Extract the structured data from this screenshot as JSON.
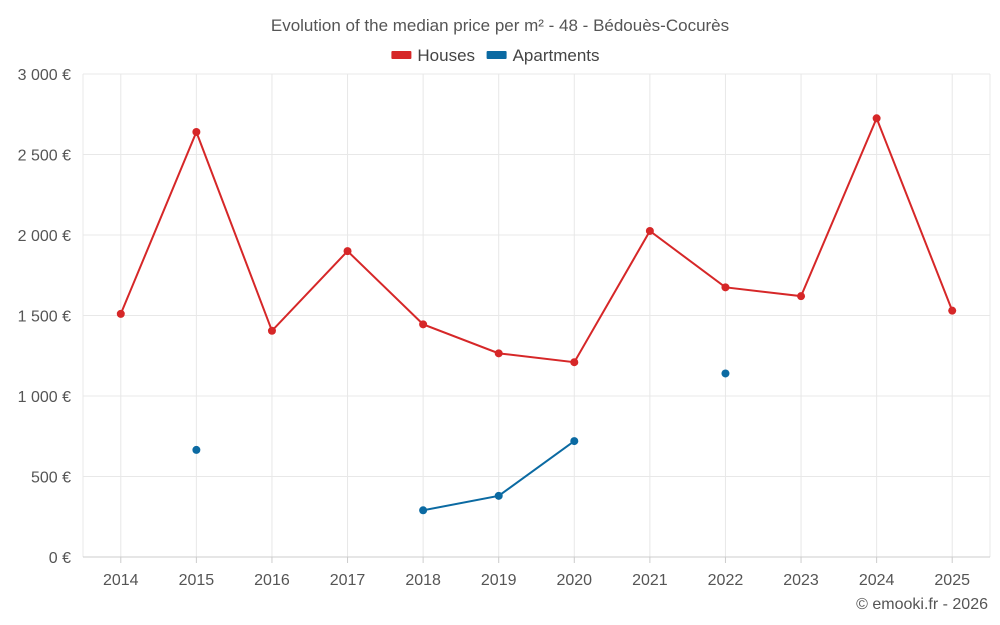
{
  "chart_data": {
    "type": "line",
    "title": "Evolution of the median price per m² - 48 - Bédouès-Cocurès",
    "categories": [
      "2014",
      "2015",
      "2016",
      "2017",
      "2018",
      "2019",
      "2020",
      "2021",
      "2022",
      "2023",
      "2024",
      "2025"
    ],
    "ylim": [
      0,
      3000
    ],
    "y_ticks": [
      0,
      500,
      1000,
      1500,
      2000,
      2500,
      3000
    ],
    "y_tick_labels": [
      "0 €",
      "500 €",
      "1 000 €",
      "1 500 €",
      "2 000 €",
      "2 500 €",
      "3 000 €"
    ],
    "legend_position": "top-center",
    "grid": true,
    "series": [
      {
        "name": "Houses",
        "color": "#d62728",
        "values": [
          1510,
          2640,
          1405,
          1900,
          1445,
          1265,
          1210,
          2025,
          1675,
          1620,
          2725,
          1530
        ]
      },
      {
        "name": "Apartments",
        "color": "#0b6aa2",
        "values": [
          null,
          665,
          null,
          null,
          290,
          380,
          720,
          null,
          1140,
          null,
          null,
          null
        ]
      }
    ]
  },
  "credit": "© emooki.fr - 2026"
}
